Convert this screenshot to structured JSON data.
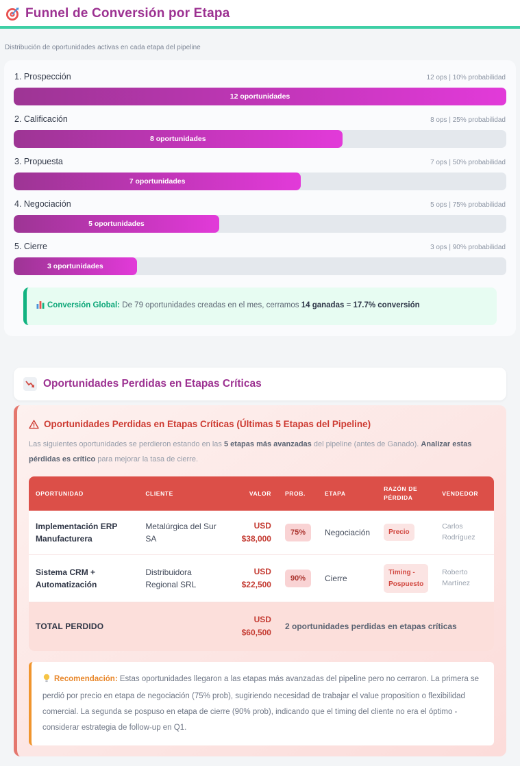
{
  "header": {
    "icon": "target-icon",
    "title": "Funnel de Conversión por Etapa",
    "subtitle": "Distribución de oportunidades activas en cada etapa del pipeline",
    "title_color": "#9c3191",
    "divider_color": "#3ecfa5"
  },
  "chart_data": [
    {
      "type": "bar",
      "orientation": "horizontal",
      "title": "Funnel de Conversión por Etapa",
      "subtitle": "Distribución de oportunidades activas en cada etapa del pipeline",
      "categories": [
        "1. Prospección",
        "2. Calificación",
        "3. Propuesta",
        "4. Negociación",
        "5. Cierre"
      ],
      "values": [
        12,
        8,
        7,
        5,
        3
      ],
      "probabilities_pct": [
        10,
        25,
        50,
        75,
        90
      ],
      "meta_labels": [
        "12 ops | 10% probabilidad",
        "8 ops | 25% probabilidad",
        "7 ops | 50% probabilidad",
        "5 ops | 75% probabilidad",
        "3 ops | 90% probabilidad"
      ],
      "bar_labels": [
        "12 oportunidades",
        "8 oportunidades",
        "7 oportunidades",
        "5 oportunidades",
        "3 oportunidades"
      ],
      "width_pct": [
        100,
        66.7,
        58.3,
        41.7,
        25
      ],
      "xlim": [
        0,
        12
      ],
      "bar_gradient": [
        "#9d3594",
        "#e23ad9"
      ],
      "track_color": "#e4e8ed"
    },
    {
      "type": "table",
      "title": "Oportunidades Perdidas en Etapas Críticas (Últimas 5 Etapas del Pipeline)",
      "columns": [
        "Oportunidad",
        "Cliente",
        "Valor",
        "Prob.",
        "Etapa",
        "Razón de Pérdida",
        "Vendedor"
      ],
      "rows": [
        {
          "opportunity": "Implementación ERP Manufacturera",
          "client": "Metalúrgica del Sur SA",
          "value_currency": "USD",
          "value_amount": "$38,000",
          "prob": "75%",
          "stage": "Negociación",
          "reason": "Precio",
          "seller": "Carlos Rodríguez"
        },
        {
          "opportunity": "Sistema CRM + Automatización",
          "client": "Distribuidora Regional SRL",
          "value_currency": "USD",
          "value_amount": "$22,500",
          "prob": "90%",
          "stage": "Cierre",
          "reason": "Timing - Pospuesto",
          "seller": "Roberto Martínez"
        }
      ],
      "footer": {
        "label": "TOTAL PERDIDO",
        "value_currency": "USD",
        "value_amount": "$60,500",
        "note": "2 oportunidades perdidas en etapas críticas"
      },
      "header_bg": "#dc4f48",
      "badge_bg": "#f9d3d4",
      "badge_text": "#ac3631"
    }
  ],
  "conversion": {
    "icon": "bar-chart-icon",
    "label": "Conversión Global:",
    "text_prefix": " De 79 oportunidades creadas en el mes, cerramos ",
    "bold_won": "14 ganadas",
    "equals": " = ",
    "bold_rate": "17.7% conversión",
    "accent_color": "#12b381"
  },
  "lost_section": {
    "icon": "chart-down-icon",
    "title": "Oportunidades Perdidas en Etapas Críticas",
    "alert": {
      "icon": "warning-icon",
      "title": "Oportunidades Perdidas en Etapas Críticas (Últimas 5 Etapas del Pipeline)",
      "desc_part1": "Las siguientes oportunidades se perdieron estando en las ",
      "desc_bold1": "5 etapas más avanzadas",
      "desc_part2": " del pipeline (antes de Ganado). ",
      "desc_bold2": "Analizar estas pérdidas es crítico",
      "desc_part3": " para mejorar la tasa de cierre.",
      "accent_color": "#cd3a31"
    },
    "recommendation": {
      "icon": "lightbulb-icon",
      "label": "Recomendación:",
      "text": " Estas oportunidades llegaron a las etapas más avanzadas del pipeline pero no cerraron. La primera se perdió por precio en etapa de negociación (75% prob), sugiriendo necesidad de trabajar el value proposition o flexibilidad comercial. La segunda se pospuso en etapa de cierre (90% prob), indicando que el timing del cliente no era el óptimo - considerar estrategia de follow-up en Q1.",
      "accent_color": "#e8872b"
    }
  }
}
